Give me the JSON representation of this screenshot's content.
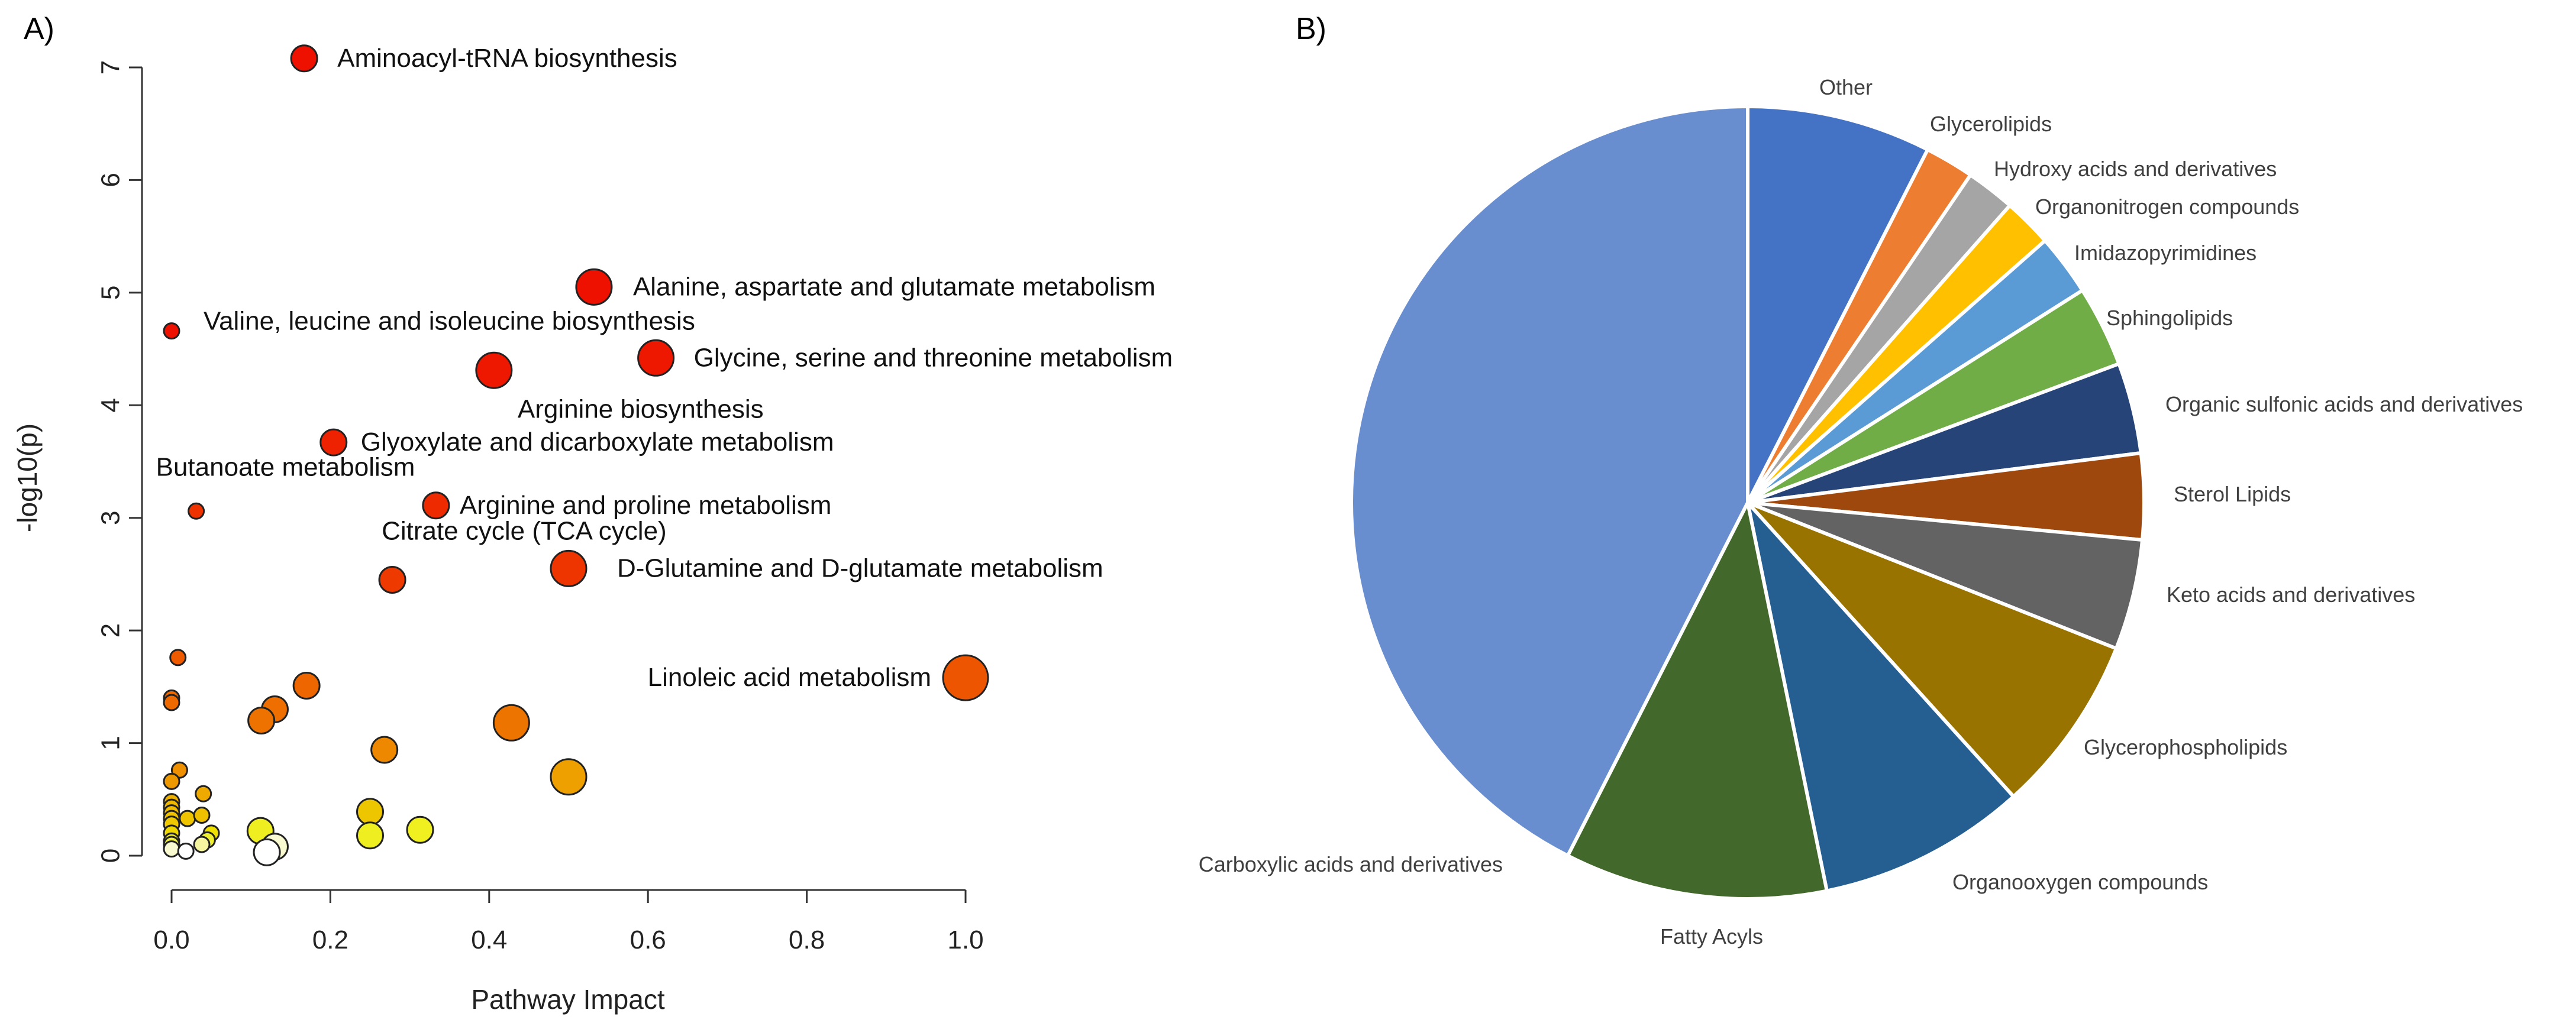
{
  "chart_data": [
    {
      "type": "scatter",
      "panel_label": "A)",
      "title": "",
      "xlabel": "Pathway Impact",
      "ylabel": "-log10(p)",
      "xlim": [
        0,
        1.0
      ],
      "ylim": [
        0,
        7
      ],
      "x_ticks": [
        "0.0",
        "0.2",
        "0.4",
        "0.6",
        "0.8",
        "1.0"
      ],
      "y_ticks": [
        "0",
        "1",
        "2",
        "3",
        "4",
        "5",
        "6",
        "7"
      ],
      "labeled_points": [
        {
          "label": "Aminoacyl-tRNA biosynthesis",
          "x": 0.167,
          "y": 7.08,
          "size": 2,
          "color": "#ee1100"
        },
        {
          "label": "Alanine, aspartate and glutamate metabolism",
          "x": 0.532,
          "y": 5.05,
          "size": 3,
          "color": "#ee1100"
        },
        {
          "label": "Valine, leucine and isoleucine biosynthesis",
          "x": 0.0,
          "y": 4.66,
          "size": 1,
          "color": "#ee1100"
        },
        {
          "label": "Glycine, serine and threonine metabolism",
          "x": 0.61,
          "y": 4.42,
          "size": 3,
          "color": "#ee1800"
        },
        {
          "label": "Arginine biosynthesis",
          "x": 0.406,
          "y": 4.31,
          "size": 3,
          "color": "#ee1800"
        },
        {
          "label": "Glyoxylate and dicarboxylate metabolism",
          "x": 0.204,
          "y": 3.67,
          "size": 2,
          "color": "#ee2200"
        },
        {
          "label": "Butanoate metabolism",
          "x": 0.031,
          "y": 3.06,
          "size": 1,
          "color": "#ee3300"
        },
        {
          "label": "Arginine and proline metabolism",
          "x": 0.333,
          "y": 3.11,
          "size": 2,
          "color": "#ee2a00"
        },
        {
          "label": "Citrate cycle (TCA cycle)",
          "x": 0.278,
          "y": 2.45,
          "size": 2,
          "color": "#ee3a00"
        },
        {
          "label": "D-Glutamine and D-glutamate metabolism",
          "x": 0.5,
          "y": 2.55,
          "size": 3,
          "color": "#ee3500"
        },
        {
          "label": "Linoleic acid metabolism",
          "x": 1.0,
          "y": 1.58,
          "size": 4,
          "color": "#ee5500"
        }
      ],
      "other_points": [
        {
          "x": 0.008,
          "y": 1.76,
          "size": 1,
          "color": "#ee5a00"
        },
        {
          "x": 0.0,
          "y": 1.4,
          "size": 1,
          "color": "#ee6a00"
        },
        {
          "x": 0.0,
          "y": 1.36,
          "size": 1,
          "color": "#ee6a00"
        },
        {
          "x": 0.17,
          "y": 1.51,
          "size": 2,
          "color": "#ee6600"
        },
        {
          "x": 0.13,
          "y": 1.3,
          "size": 2,
          "color": "#ee6e00"
        },
        {
          "x": 0.113,
          "y": 1.2,
          "size": 2,
          "color": "#ee7200"
        },
        {
          "x": 0.428,
          "y": 1.18,
          "size": 3,
          "color": "#ee7400"
        },
        {
          "x": 0.268,
          "y": 0.94,
          "size": 2,
          "color": "#ee8800"
        },
        {
          "x": 0.5,
          "y": 0.7,
          "size": 3,
          "color": "#eea000"
        },
        {
          "x": 0.01,
          "y": 0.76,
          "size": 1,
          "color": "#ee9000"
        },
        {
          "x": 0.0,
          "y": 0.66,
          "size": 1,
          "color": "#ee9800"
        },
        {
          "x": 0.04,
          "y": 0.55,
          "size": 1,
          "color": "#eeaa00"
        },
        {
          "x": 0.0,
          "y": 0.48,
          "size": 1,
          "color": "#eeb000"
        },
        {
          "x": 0.0,
          "y": 0.43,
          "size": 1,
          "color": "#eeb800"
        },
        {
          "x": 0.0,
          "y": 0.38,
          "size": 1,
          "color": "#eebc00"
        },
        {
          "x": 0.0,
          "y": 0.33,
          "size": 1,
          "color": "#eec200"
        },
        {
          "x": 0.0,
          "y": 0.28,
          "size": 1,
          "color": "#eec800"
        },
        {
          "x": 0.02,
          "y": 0.33,
          "size": 1,
          "color": "#eec400"
        },
        {
          "x": 0.038,
          "y": 0.36,
          "size": 1,
          "color": "#eec000"
        },
        {
          "x": 0.25,
          "y": 0.39,
          "size": 2,
          "color": "#eec600"
        },
        {
          "x": 0.0,
          "y": 0.2,
          "size": 1,
          "color": "#eed600"
        },
        {
          "x": 0.05,
          "y": 0.2,
          "size": 1,
          "color": "#eee000"
        },
        {
          "x": 0.0,
          "y": 0.13,
          "size": 1,
          "color": "#eeea20"
        },
        {
          "x": 0.0,
          "y": 0.1,
          "size": 1,
          "color": "#eeee40"
        },
        {
          "x": 0.045,
          "y": 0.14,
          "size": 1,
          "color": "#eeee30"
        },
        {
          "x": 0.112,
          "y": 0.22,
          "size": 2,
          "color": "#eeee20"
        },
        {
          "x": 0.313,
          "y": 0.23,
          "size": 2,
          "color": "#f0f020"
        },
        {
          "x": 0.25,
          "y": 0.18,
          "size": 2,
          "color": "#eeee20"
        },
        {
          "x": 0.038,
          "y": 0.1,
          "size": 1,
          "color": "#f6f6a0"
        },
        {
          "x": 0.0,
          "y": 0.06,
          "size": 1,
          "color": "#fafad0"
        },
        {
          "x": 0.018,
          "y": 0.04,
          "size": 1,
          "color": "#ffffff"
        },
        {
          "x": 0.13,
          "y": 0.08,
          "size": 2,
          "color": "#fafad0"
        },
        {
          "x": 0.12,
          "y": 0.03,
          "size": 2,
          "color": "#ffffff"
        }
      ]
    },
    {
      "type": "pie",
      "panel_label": "B)",
      "title": "",
      "slices": [
        {
          "label": "Other",
          "value": 7.5,
          "color": "#4472C4"
        },
        {
          "label": "Glycerolipids",
          "value": 2.0,
          "color": "#ED7D31"
        },
        {
          "label": "Hydroxy acids and derivatives",
          "value": 2.0,
          "color": "#A5A5A5"
        },
        {
          "label": "Organonitrogen compounds",
          "value": 2.0,
          "color": "#FFC000"
        },
        {
          "label": "Imidazopyrimidines",
          "value": 2.5,
          "color": "#5B9BD5"
        },
        {
          "label": "Sphingolipids",
          "value": 3.3,
          "color": "#70AD47"
        },
        {
          "label": "Organic sulfonic acids and derivatives",
          "value": 3.7,
          "color": "#264478"
        },
        {
          "label": "Sterol Lipids",
          "value": 3.5,
          "color": "#9E480E"
        },
        {
          "label": "Keto acids and derivatives",
          "value": 4.5,
          "color": "#636363"
        },
        {
          "label": "Glycerophospholipids",
          "value": 7.3,
          "color": "#997300"
        },
        {
          "label": "Organooxygen compounds",
          "value": 8.5,
          "color": "#255E91"
        },
        {
          "label": "Fatty Acyls",
          "value": 10.7,
          "color": "#43682B"
        },
        {
          "label": "Carboxylic acids and derivatives",
          "value": 42.5,
          "color": "#698ED0"
        }
      ]
    }
  ]
}
